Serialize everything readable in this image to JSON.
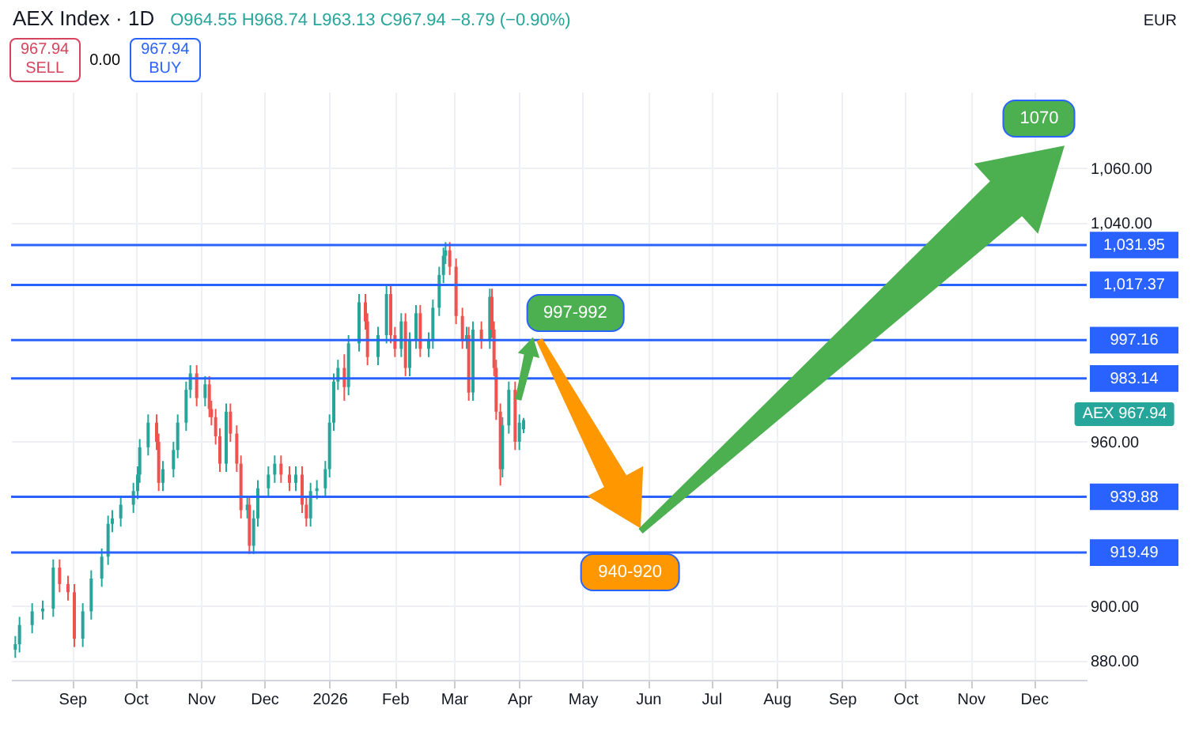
{
  "chart_data": {
    "type": "candlestick",
    "title": "AEX Index · 1D",
    "subtitle": "O964.55 H968.74 L963.13 C967.94 −8.79 (−0.90%)",
    "x": [
      "2025-08-05",
      "2025-08-07",
      "2025-08-13",
      "2025-08-18",
      "2025-08-23",
      "2025-08-26",
      "2025-08-30",
      "2025-09-02",
      "2025-09-06",
      "2025-09-10",
      "2025-09-15",
      "2025-09-18",
      "2025-09-20",
      "2025-09-24",
      "2025-09-30",
      "2025-10-02",
      "2025-10-03",
      "2025-10-07",
      "2025-10-11",
      "2025-10-12",
      "2025-10-14",
      "2025-10-19",
      "2025-10-21",
      "2025-10-25",
      "2025-10-27",
      "2025-10-30",
      "2025-11-03",
      "2025-11-05",
      "2025-11-06",
      "2025-11-08",
      "2025-11-10",
      "2025-11-13",
      "2025-11-15",
      "2025-11-18",
      "2025-11-20",
      "2025-11-23",
      "2025-11-24",
      "2025-11-26",
      "2025-11-28",
      "2025-12-03",
      "2025-12-06",
      "2025-12-09",
      "2025-12-13",
      "2025-12-16",
      "2025-12-19",
      "2025-12-21",
      "2025-12-23",
      "2025-12-26",
      "2025-12-30",
      "2026-01-01",
      "2026-01-03",
      "2026-01-05",
      "2026-01-08",
      "2026-01-10",
      "2026-01-15",
      "2026-01-18",
      "2026-01-19",
      "2026-01-24",
      "2026-01-28",
      "2026-01-30",
      "2026-02-01",
      "2026-02-04",
      "2026-02-06",
      "2026-02-08",
      "2026-02-11",
      "2026-02-13",
      "2026-02-17",
      "2026-02-19",
      "2026-02-22",
      "2026-02-24",
      "2026-02-25",
      "2026-02-27",
      "2026-03-02",
      "2026-03-05",
      "2026-03-07",
      "2026-03-08",
      "2026-03-10",
      "2026-03-14",
      "2026-03-18",
      "2026-03-19",
      "2026-03-20",
      "2026-03-21",
      "2026-03-23",
      "2026-03-24",
      "2026-03-27",
      "2026-03-30",
      "2026-04-01",
      "2026-04-03"
    ],
    "ohlc": [
      [
        884,
        889,
        881,
        886
      ],
      [
        886,
        896,
        883,
        893
      ],
      [
        893,
        901,
        890,
        898
      ],
      [
        898,
        902,
        895,
        899
      ],
      [
        899,
        917,
        896,
        914
      ],
      [
        914,
        917,
        905,
        908
      ],
      [
        908,
        911,
        902,
        905
      ],
      [
        905,
        908,
        885,
        888
      ],
      [
        888,
        901,
        885,
        898
      ],
      [
        898,
        913,
        895,
        910
      ],
      [
        910,
        921,
        907,
        918
      ],
      [
        918,
        933,
        915,
        930
      ],
      [
        930,
        935,
        927,
        932
      ],
      [
        932,
        940,
        929,
        937
      ],
      [
        937,
        945,
        934,
        942
      ],
      [
        942,
        951,
        939,
        948
      ],
      [
        948,
        961,
        945,
        958
      ],
      [
        958,
        970,
        955,
        967
      ],
      [
        967,
        970,
        957,
        960
      ],
      [
        960,
        963,
        942,
        945
      ],
      [
        945,
        953,
        942,
        950
      ],
      [
        950,
        960,
        947,
        957
      ],
      [
        957,
        970,
        954,
        967
      ],
      [
        967,
        982,
        964,
        979
      ],
      [
        979,
        988,
        976,
        985
      ],
      [
        985,
        988,
        973,
        976
      ],
      [
        976,
        984,
        973,
        981
      ],
      [
        981,
        984,
        969,
        972
      ],
      [
        972,
        975,
        966,
        969
      ],
      [
        969,
        972,
        959,
        962
      ],
      [
        962,
        965,
        949,
        952
      ],
      [
        952,
        974,
        949,
        971
      ],
      [
        971,
        974,
        960,
        963
      ],
      [
        963,
        966,
        949,
        952
      ],
      [
        952,
        955,
        932,
        935
      ],
      [
        935,
        940,
        932,
        937
      ],
      [
        937,
        940,
        919,
        922
      ],
      [
        922,
        935,
        919,
        932
      ],
      [
        932,
        946,
        929,
        943
      ],
      [
        943,
        951,
        940,
        948
      ],
      [
        948,
        955,
        945,
        952
      ],
      [
        952,
        955,
        945,
        948
      ],
      [
        948,
        951,
        942,
        945
      ],
      [
        945,
        951,
        942,
        948
      ],
      [
        948,
        951,
        934,
        937
      ],
      [
        937,
        940,
        929,
        932
      ],
      [
        932,
        945,
        929,
        942
      ],
      [
        942,
        946,
        939,
        943
      ],
      [
        943,
        953,
        940,
        950
      ],
      [
        950,
        970,
        947,
        967
      ],
      [
        967,
        985,
        964,
        982
      ],
      [
        982,
        990,
        979,
        987
      ],
      [
        987,
        992,
        975,
        980
      ],
      [
        980,
        999,
        977,
        996
      ],
      [
        996,
        1014,
        993,
        1011
      ],
      [
        1011,
        1014,
        1001,
        1004
      ],
      [
        1004,
        1007,
        988,
        991
      ],
      [
        991,
        1002,
        988,
        999
      ],
      [
        999,
        1017,
        996,
        1014
      ],
      [
        1014,
        1017,
        996,
        999
      ],
      [
        999,
        1002,
        991,
        994
      ],
      [
        994,
        1007,
        991,
        1004
      ],
      [
        1004,
        1007,
        984,
        987
      ],
      [
        987,
        1000,
        984,
        997
      ],
      [
        997,
        1010,
        994,
        1007
      ],
      [
        1007,
        1010,
        991,
        994
      ],
      [
        994,
        1000,
        991,
        997
      ],
      [
        997,
        1012,
        994,
        1009
      ],
      [
        1009,
        1024,
        1006,
        1021
      ],
      [
        1021,
        1031,
        1018,
        1028
      ],
      [
        1028,
        1033,
        1025,
        1030
      ],
      [
        1030,
        1033,
        1021,
        1024
      ],
      [
        1024,
        1027,
        1003,
        1006
      ],
      [
        1006,
        1009,
        994,
        997
      ],
      [
        997,
        1002,
        994,
        999
      ],
      [
        999,
        1002,
        975,
        978
      ],
      [
        978,
        1004,
        975,
        1001
      ],
      [
        1001,
        1004,
        994,
        997
      ],
      [
        997,
        1016,
        994,
        1013
      ],
      [
        1013,
        1016,
        998,
        1001
      ],
      [
        1001,
        1004,
        984,
        987
      ],
      [
        987,
        990,
        968,
        971
      ],
      [
        971,
        974,
        944,
        950
      ],
      [
        950,
        969,
        947,
        966
      ],
      [
        966,
        982,
        963,
        979
      ],
      [
        979,
        982,
        957,
        960
      ],
      [
        960,
        970,
        957,
        967
      ],
      [
        964.55,
        968.74,
        963.13,
        967.94
      ]
    ],
    "colors": [
      "#26a69a",
      "#26a69a",
      "#26a69a",
      "#26a69a",
      "#26a69a",
      "#ef5350",
      "#ef5350",
      "#ef5350",
      "#26a69a",
      "#26a69a",
      "#26a69a",
      "#26a69a",
      "#26a69a",
      "#26a69a",
      "#26a69a",
      "#26a69a",
      "#26a69a",
      "#26a69a",
      "#ef5350",
      "#ef5350",
      "#26a69a",
      "#26a69a",
      "#26a69a",
      "#26a69a",
      "#26a69a",
      "#ef5350",
      "#26a69a",
      "#ef5350",
      "#ef5350",
      "#ef5350",
      "#ef5350",
      "#26a69a",
      "#ef5350",
      "#ef5350",
      "#ef5350",
      "#26a69a",
      "#ef5350",
      "#26a69a",
      "#26a69a",
      "#26a69a",
      "#26a69a",
      "#ef5350",
      "#ef5350",
      "#26a69a",
      "#ef5350",
      "#ef5350",
      "#26a69a",
      "#26a69a",
      "#26a69a",
      "#26a69a",
      "#26a69a",
      "#26a69a",
      "#ef5350",
      "#26a69a",
      "#26a69a",
      "#ef5350",
      "#ef5350",
      "#26a69a",
      "#26a69a",
      "#ef5350",
      "#ef5350",
      "#26a69a",
      "#ef5350",
      "#26a69a",
      "#26a69a",
      "#ef5350",
      "#26a69a",
      "#26a69a",
      "#26a69a",
      "#26a69a",
      "#26a69a",
      "#ef5350",
      "#ef5350",
      "#ef5350",
      "#26a69a",
      "#ef5350",
      "#26a69a",
      "#ef5350",
      "#26a69a",
      "#ef5350",
      "#ef5350",
      "#ef5350",
      "#ef5350",
      "#26a69a",
      "#26a69a",
      "#ef5350",
      "#26a69a",
      "#26a69a"
    ],
    "xlim": [
      "2025-08-03",
      "2026-12-26"
    ],
    "xticks": [
      {
        "value": "2025-09-01",
        "label": "Sep"
      },
      {
        "value": "2025-10-01",
        "label": "Oct"
      },
      {
        "value": "2025-11-01",
        "label": "Nov"
      },
      {
        "value": "2025-12-01",
        "label": "Dec"
      },
      {
        "value": "2026-01-01",
        "label": "2026"
      },
      {
        "value": "2026-02-01",
        "label": "Feb"
      },
      {
        "value": "2026-03-01",
        "label": "Mar"
      },
      {
        "value": "2026-04-01",
        "label": "Apr"
      },
      {
        "value": "2026-05-01",
        "label": "May"
      },
      {
        "value": "2026-06-01",
        "label": "Jun"
      },
      {
        "value": "2026-07-01",
        "label": "Jul"
      },
      {
        "value": "2026-08-01",
        "label": "Aug"
      },
      {
        "value": "2026-09-01",
        "label": "Sep"
      },
      {
        "value": "2026-10-01",
        "label": "Oct"
      },
      {
        "value": "2026-11-01",
        "label": "Nov"
      },
      {
        "value": "2026-12-01",
        "label": "Dec"
      }
    ],
    "ylim": [
      873,
      1088
    ],
    "yticks": [
      {
        "value": 880,
        "label": "880.00"
      },
      {
        "value": 900,
        "label": "900.00"
      },
      {
        "value": 960,
        "label": "960.00"
      },
      {
        "value": 1040,
        "label": "1,040.00"
      },
      {
        "value": 1060,
        "label": "1,060.00"
      }
    ],
    "grid": true,
    "ref_lines": [
      {
        "axis": "y",
        "value": 1031.95,
        "label": "1,031.95",
        "color": "#2962ff"
      },
      {
        "axis": "y",
        "value": 1017.37,
        "label": "1,017.37",
        "color": "#2962ff"
      },
      {
        "axis": "y",
        "value": 997.16,
        "label": "997.16",
        "color": "#2962ff"
      },
      {
        "axis": "y",
        "value": 983.14,
        "label": "983.14",
        "color": "#2962ff"
      },
      {
        "axis": "y",
        "value": 939.88,
        "label": "939.88",
        "color": "#2962ff"
      },
      {
        "axis": "y",
        "value": 919.49,
        "label": "919.49",
        "color": "#2962ff"
      }
    ],
    "annotations": [
      "967.94",
      "SELL",
      "0.00",
      "967.94",
      "BUY",
      "EUR",
      "AEX 967.94",
      "997-992",
      "940-920",
      "1070"
    ]
  }
}
